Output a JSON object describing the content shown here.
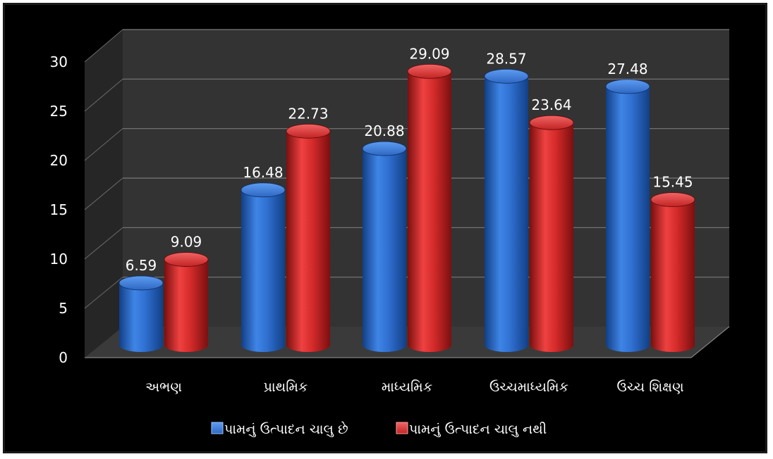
{
  "chart_data": {
    "type": "bar",
    "categories": [
      "અભણ",
      "પ્રાથમિક",
      "માધ્યમિક",
      "ઉચ્ચમાધ્યમિક",
      "ઉચ્ચ શિક્ષણ"
    ],
    "series": [
      {
        "name": "પામનું ઉત્પાદન ચાલુ છે",
        "values": [
          6.59,
          16.48,
          20.88,
          28.57,
          27.48
        ],
        "color": "#2f6fd0"
      },
      {
        "name": "પામનું ઉત્પાદન ચાલુ નથી",
        "values": [
          9.09,
          22.73,
          29.09,
          23.64,
          15.45
        ],
        "color": "#d42a2a"
      }
    ],
    "data_labels": [
      [
        "6.59",
        "16.48",
        "20.88",
        "28.57",
        "27.48"
      ],
      [
        "9.09",
        "22.73",
        "29.09",
        "23.64",
        "15.45"
      ]
    ],
    "yticks": [
      "0",
      "5",
      "10",
      "15",
      "20",
      "25",
      "30"
    ],
    "ylim": [
      0,
      30
    ],
    "grid": true,
    "legend_position": "bottom",
    "title": "",
    "xlabel": "",
    "ylabel": ""
  },
  "colors": {
    "background": "#000000",
    "wall": "#333333",
    "grid": "#777777"
  }
}
